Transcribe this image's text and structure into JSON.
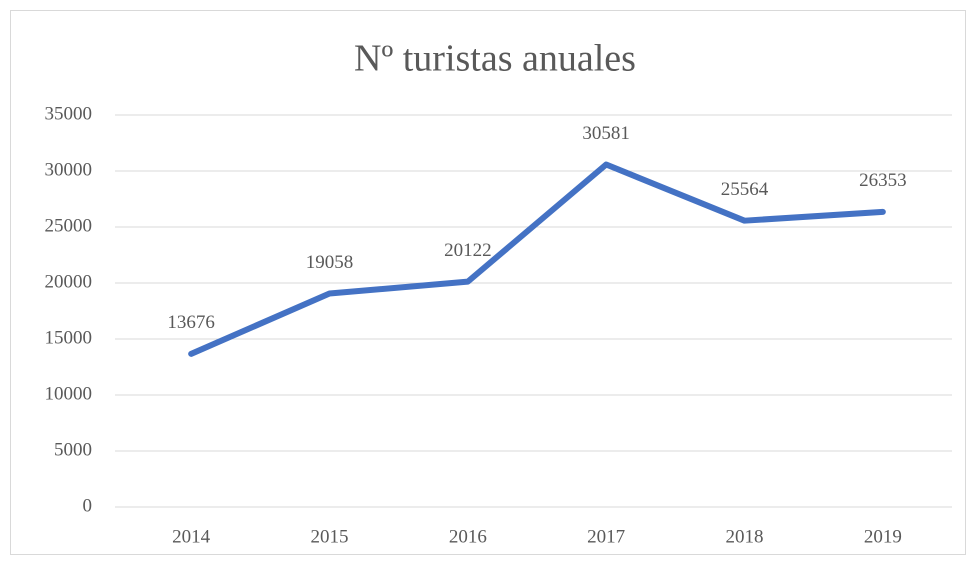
{
  "chart_data": {
    "type": "line",
    "title": "Nº turistas anuales",
    "categories": [
      "2014",
      "2015",
      "2016",
      "2017",
      "2018",
      "2019"
    ],
    "series": [
      {
        "name": "Nº turistas anuales",
        "color": "#4472c4",
        "values": [
          13676,
          19058,
          20122,
          30581,
          25564,
          26353
        ]
      }
    ],
    "ylim": [
      0,
      35000
    ],
    "yticks": [
      0,
      5000,
      10000,
      15000,
      20000,
      25000,
      30000,
      35000
    ],
    "grid": true,
    "legend": false,
    "data_labels": true
  }
}
